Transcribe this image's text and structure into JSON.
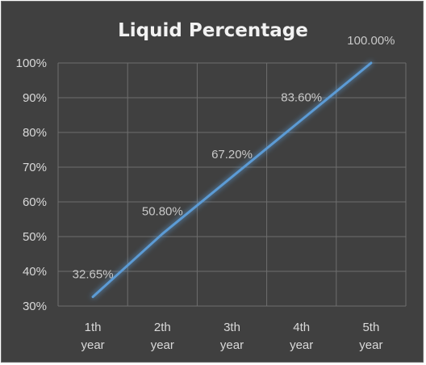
{
  "chart_data": {
    "type": "line",
    "title": "Liquid Percentage",
    "categories": [
      "1th year",
      "2th year",
      "3th year",
      "4th year",
      "5th year"
    ],
    "category_lines": [
      [
        "1th",
        "year"
      ],
      [
        "2th",
        "year"
      ],
      [
        "3th",
        "year"
      ],
      [
        "4th",
        "year"
      ],
      [
        "5th",
        "year"
      ]
    ],
    "series": [
      {
        "values": [
          32.65,
          50.8,
          67.2,
          83.6,
          100.0
        ],
        "data_labels": [
          "32.65%",
          "50.80%",
          "67.20%",
          "83.60%",
          "100.00%"
        ],
        "color": "#5b9bd5"
      }
    ],
    "ylim": [
      30,
      100
    ],
    "y_ticks": [
      30,
      40,
      50,
      60,
      70,
      80,
      90,
      100
    ],
    "y_tick_labels": [
      "30%",
      "40%",
      "50%",
      "60%",
      "70%",
      "80%",
      "90%",
      "100%"
    ],
    "xlabel": "",
    "ylabel": "",
    "grid": true,
    "legend": "none",
    "background_color": "#404040"
  }
}
